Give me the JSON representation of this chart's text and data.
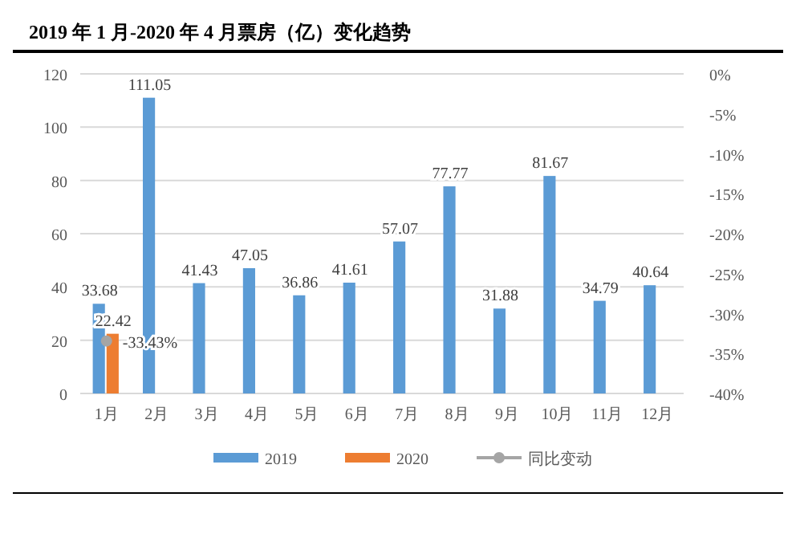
{
  "chart_data": {
    "type": "bar",
    "title": "2019 年 1 月-2020 年 4 月票房（亿）变化趋势",
    "categories": [
      "1月",
      "2月",
      "3月",
      "4月",
      "5月",
      "6月",
      "7月",
      "8月",
      "9月",
      "10月",
      "11月",
      "12月"
    ],
    "series": [
      {
        "name": "2019",
        "color": "#5b9bd5",
        "values": [
          33.68,
          111.05,
          41.43,
          47.05,
          36.86,
          41.61,
          57.07,
          77.77,
          31.88,
          81.67,
          34.79,
          40.64
        ]
      },
      {
        "name": "2020",
        "color": "#ed7d31",
        "values": [
          22.42,
          null,
          null,
          null,
          null,
          null,
          null,
          null,
          null,
          null,
          null,
          null
        ]
      },
      {
        "name": "同比变动",
        "type": "line",
        "axis": "y2",
        "color": "#a5a5a5",
        "marker": "circle",
        "values": [
          -33.43,
          null,
          null,
          null,
          null,
          null,
          null,
          null,
          null,
          null,
          null,
          null
        ],
        "value_labels": [
          "-33.43%",
          null,
          null,
          null,
          null,
          null,
          null,
          null,
          null,
          null,
          null,
          null
        ]
      }
    ],
    "ylim": [
      0,
      120
    ],
    "yticks": [
      0,
      20,
      40,
      60,
      80,
      100,
      120
    ],
    "y2lim": [
      -40,
      0
    ],
    "y2ticks": [
      {
        "value": -40,
        "label": "-40%"
      },
      {
        "value": -35,
        "label": "-35%"
      },
      {
        "value": -30,
        "label": "-30%"
      },
      {
        "value": -25,
        "label": "-25%"
      },
      {
        "value": -20,
        "label": "-20%"
      },
      {
        "value": -15,
        "label": "-15%"
      },
      {
        "value": -10,
        "label": "-10%"
      },
      {
        "value": -5,
        "label": "-5%"
      },
      {
        "value": 0,
        "label": "0%"
      }
    ],
    "grid": "y",
    "legend": "bottom",
    "data_labels": true
  }
}
